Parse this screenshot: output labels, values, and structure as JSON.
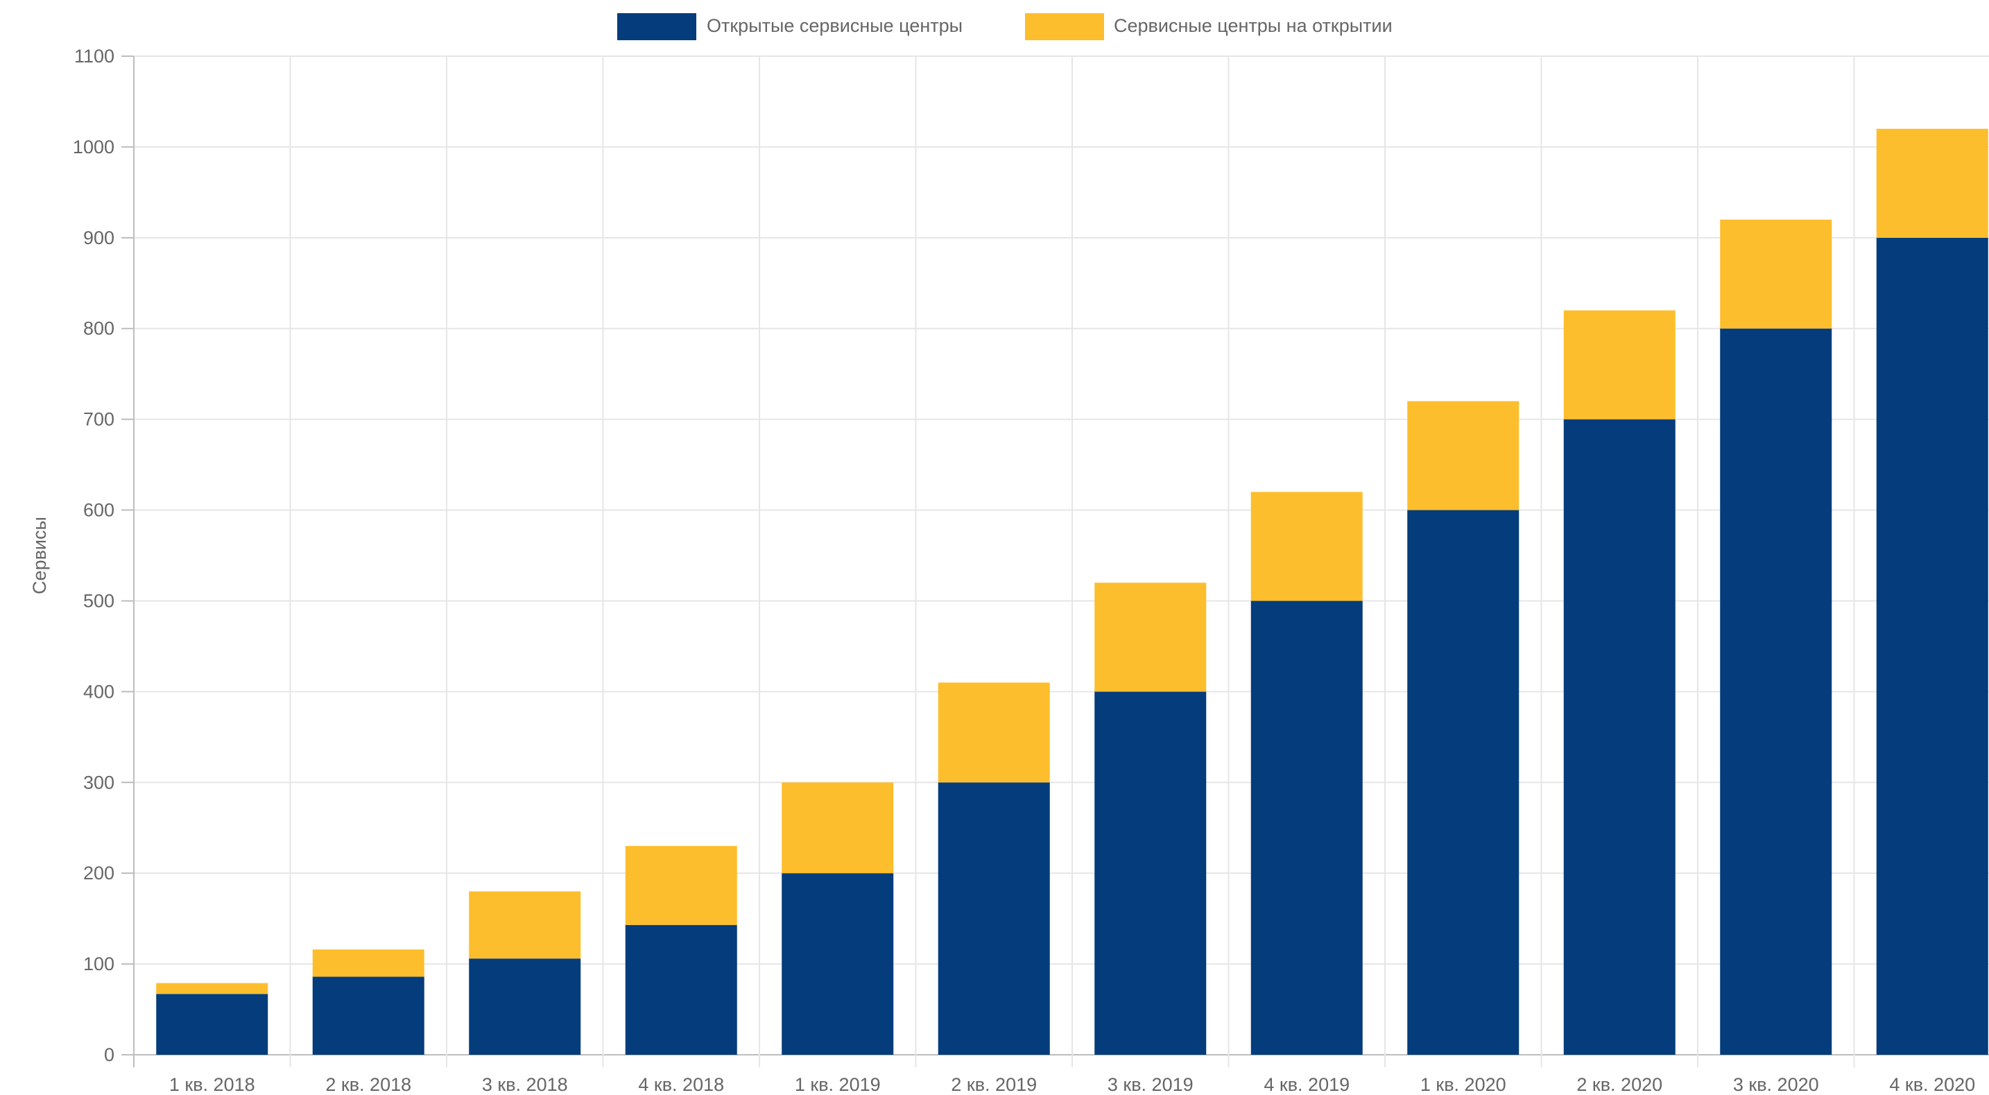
{
  "chart_data": {
    "type": "bar",
    "stacked": true,
    "title": "",
    "xlabel": "",
    "ylabel": "Сервисы",
    "ylim": [
      0,
      1100
    ],
    "ytick_step": 100,
    "grid": true,
    "legend_position": "top-center",
    "categories": [
      "1 кв. 2018",
      "2 кв. 2018",
      "3 кв. 2018",
      "4 кв. 2018",
      "1 кв. 2019",
      "2 кв. 2019",
      "3 кв. 2019",
      "4 кв. 2019",
      "1 кв. 2020",
      "2 кв. 2020",
      "3 кв. 2020",
      "4 кв. 2020"
    ],
    "series": [
      {
        "name": "Открытые сервисные центры",
        "color": "#043c7c",
        "values": [
          67,
          86,
          106,
          143,
          200,
          300,
          400,
          500,
          600,
          700,
          800,
          900
        ]
      },
      {
        "name": "Сервисные центры на открытии",
        "color": "#fdbe2d",
        "values": [
          12,
          30,
          74,
          87,
          100,
          110,
          120,
          120,
          120,
          120,
          120,
          120
        ]
      }
    ]
  }
}
